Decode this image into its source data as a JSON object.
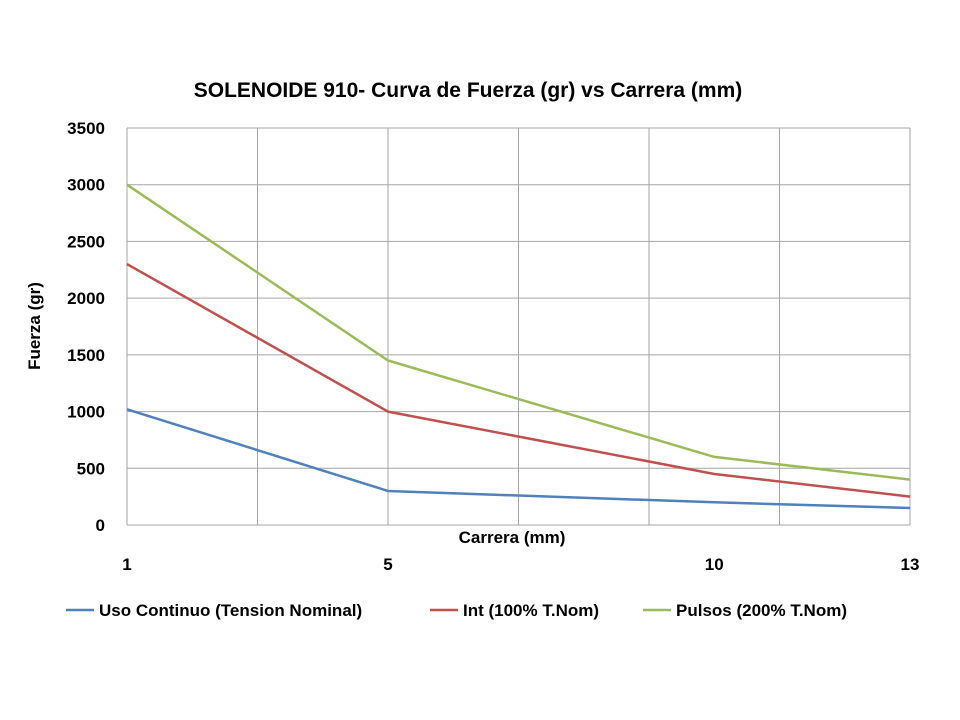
{
  "chart_data": {
    "type": "line",
    "title": "SOLENOIDE 910- Curva de Fuerza (gr) vs Carrera (mm)",
    "xlabel": "Carrera (mm)",
    "ylabel": "Fuerza (gr)",
    "categories": [
      "1",
      "5",
      "10",
      "13"
    ],
    "ylim": [
      0,
      3500
    ],
    "yticks": [
      "0",
      "500",
      "1000",
      "1500",
      "2000",
      "2500",
      "3000",
      "3500"
    ],
    "grid": true,
    "legend_position": "bottom",
    "series": [
      {
        "name": "Uso Continuo (Tension Nominal)",
        "color": "#4f81bd",
        "values": [
          1020,
          300,
          200,
          150
        ]
      },
      {
        "name": "Int (100% T.Nom)",
        "color": "#c0504d",
        "values": [
          2300,
          1000,
          450,
          250
        ]
      },
      {
        "name": "Pulsos (200% T.Nom)",
        "color": "#9bbb59",
        "values": [
          3000,
          1450,
          600,
          400
        ]
      }
    ]
  }
}
